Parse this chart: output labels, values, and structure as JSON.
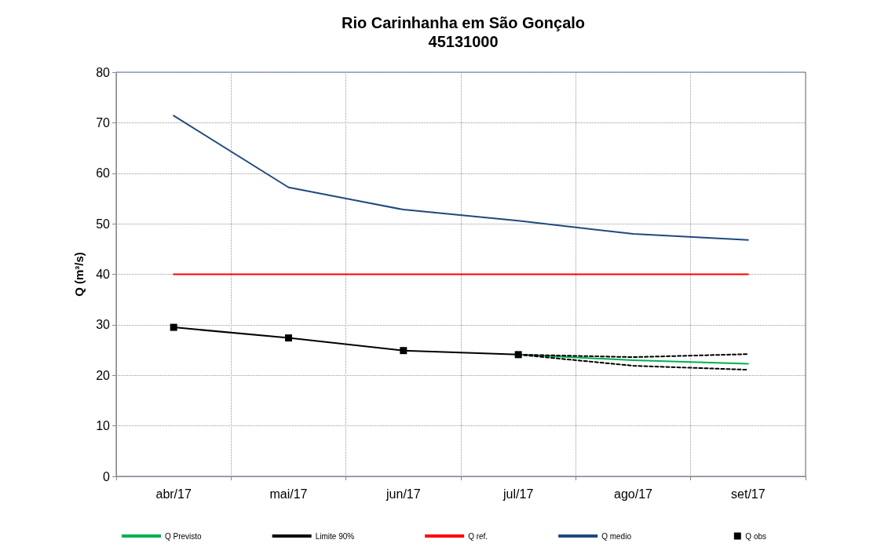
{
  "chart_data": {
    "type": "line",
    "title": "Rio Carinhanha em São Gonçalo\n45131000",
    "ylabel": "Q (m³/s)",
    "categories": [
      "abr/17",
      "mai/17",
      "jun/17",
      "jul/17",
      "ago/17",
      "set/17"
    ],
    "ylim": [
      0,
      80
    ],
    "yticks": [
      0,
      10,
      20,
      30,
      40,
      50,
      60,
      70,
      80
    ],
    "grid": true,
    "legend": "bottom",
    "series": [
      {
        "name": "Q Previsto",
        "color": "#00b050",
        "line_style": "solid",
        "marker": "none",
        "values": [
          null,
          null,
          null,
          24.1,
          23.0,
          22.3
        ]
      },
      {
        "name": "Limite 90%",
        "color": "#000000",
        "line_style": "dashed",
        "marker": "none",
        "values": [
          null,
          null,
          null,
          24.1,
          23.6,
          24.2
        ]
      },
      {
        "color": "#000000",
        "line_style": "dashed",
        "marker": "none",
        "values": [
          null,
          null,
          null,
          24.1,
          21.9,
          21.1
        ]
      },
      {
        "name": "Q ref.",
        "color": "#ff0000",
        "line_style": "solid",
        "marker": "none",
        "values": [
          40,
          40,
          40,
          40,
          40,
          40
        ]
      },
      {
        "name": "Q medio",
        "color": "#1f497d",
        "line_style": "solid",
        "marker": "none",
        "values": [
          71.4,
          57.2,
          52.8,
          50.6,
          48.0,
          46.8
        ]
      },
      {
        "name": "Q obs",
        "color": "#000000",
        "line_style": "solid",
        "marker": "square",
        "values": [
          29.5,
          27.4,
          24.9,
          24.1,
          null,
          null
        ]
      }
    ]
  }
}
